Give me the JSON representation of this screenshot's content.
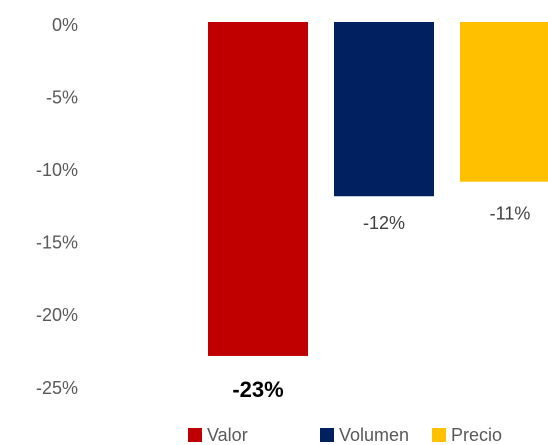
{
  "chart_data": {
    "type": "bar",
    "series": [
      {
        "name": "Valor",
        "color": "#c00000",
        "values": [
          -23
        ],
        "value_labels": [
          "-23%"
        ]
      },
      {
        "name": "Volumen",
        "color": "#002060",
        "values": [
          -12
        ],
        "value_labels": [
          "-12%"
        ]
      },
      {
        "name": "Precio",
        "color": "#ffc000",
        "values": [
          -11
        ],
        "value_labels": [
          "-11%"
        ]
      }
    ],
    "ylim": [
      0,
      -25
    ],
    "yticks": [
      {
        "value": 0,
        "label": "0%"
      },
      {
        "value": -5,
        "label": "-5%"
      },
      {
        "value": -10,
        "label": "-10%"
      },
      {
        "value": -15,
        "label": "-15%"
      },
      {
        "value": -20,
        "label": "-20%"
      },
      {
        "value": -25,
        "label": "-25%"
      }
    ],
    "grid": false
  }
}
